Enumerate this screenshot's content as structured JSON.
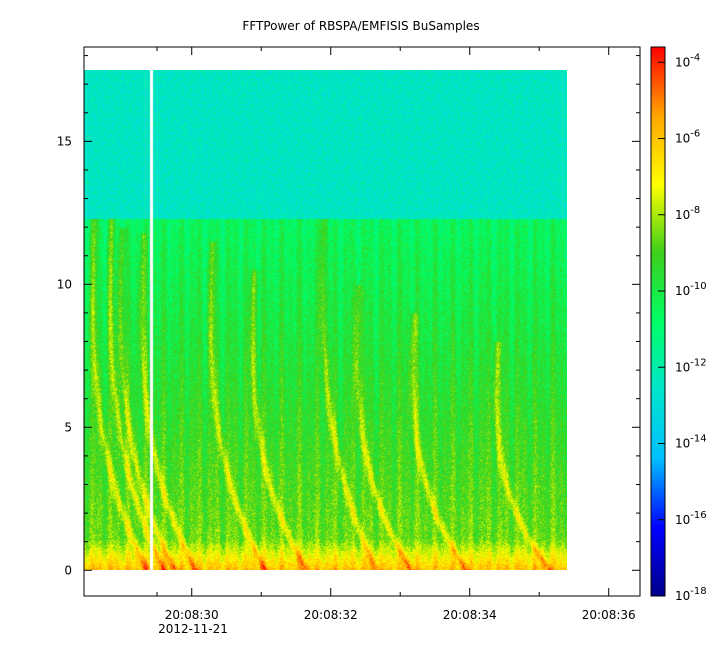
{
  "chart_data": {
    "type": "heatmap",
    "title": "FFTPower of RBSPA/EMFISIS  BuSamples",
    "xlabel": "",
    "ylabel": "",
    "x_ticks": [
      {
        "value": 30,
        "label": "20:08:30"
      },
      {
        "value": 32,
        "label": "20:08:32"
      },
      {
        "value": 34,
        "label": "20:08:34"
      },
      {
        "value": 36,
        "label": "20:08:36"
      }
    ],
    "x_minor_ticks": [
      29.5,
      31,
      33,
      35
    ],
    "x_date_label": "2012-11-21",
    "xlim": [
      28.45,
      36.45
    ],
    "data_x_range": [
      28.45,
      35.4
    ],
    "gap_x": 29.42,
    "y_ticks": [
      0,
      5,
      10,
      15
    ],
    "ylim": [
      -0.9,
      18.3
    ],
    "data_y_range": [
      0,
      17.5
    ],
    "colorbar": {
      "scale": "log",
      "min_exp": -18,
      "max_exp": -3.6,
      "tick_exps": [
        -18,
        -16,
        -14,
        -12,
        -10,
        -8,
        -6,
        -4
      ],
      "tick_labels": [
        "10",
        "10",
        "10",
        "10",
        "10",
        "10",
        "10",
        "10"
      ],
      "tick_sup": [
        "-18",
        "-16",
        "-14",
        "-12",
        "-10",
        "-8",
        "-6",
        "-4"
      ],
      "colors": [
        "#00008b",
        "#0000ff",
        "#00bfff",
        "#00e5cc",
        "#00ff66",
        "#3ccf1a",
        "#ffff00",
        "#ffa500",
        "#ff0000"
      ]
    },
    "features": {
      "background_high_band": {
        "y_from": 12.3,
        "y_to": 17.5,
        "log_power": -12.5
      },
      "mid_band": {
        "y_from": 0.5,
        "y_to": 12.3,
        "log_power": -9.8
      },
      "low_band": {
        "y_from": 0,
        "y_to": 0.5,
        "log_power": -7.3
      },
      "chorus_rising_tones": [
        {
          "x": 28.6,
          "peak_y": 12.3
        },
        {
          "x": 28.85,
          "peak_y": 12.5
        },
        {
          "x": 29.0,
          "peak_y": 12.0
        },
        {
          "x": 29.3,
          "peak_y": 11.8
        },
        {
          "x": 30.3,
          "peak_y": 11.5
        },
        {
          "x": 30.9,
          "peak_y": 10.5
        },
        {
          "x": 31.9,
          "peak_y": 13.0
        },
        {
          "x": 32.4,
          "peak_y": 10.0
        },
        {
          "x": 33.2,
          "peak_y": 9.0
        },
        {
          "x": 34.4,
          "peak_y": 8.0
        }
      ]
    }
  }
}
